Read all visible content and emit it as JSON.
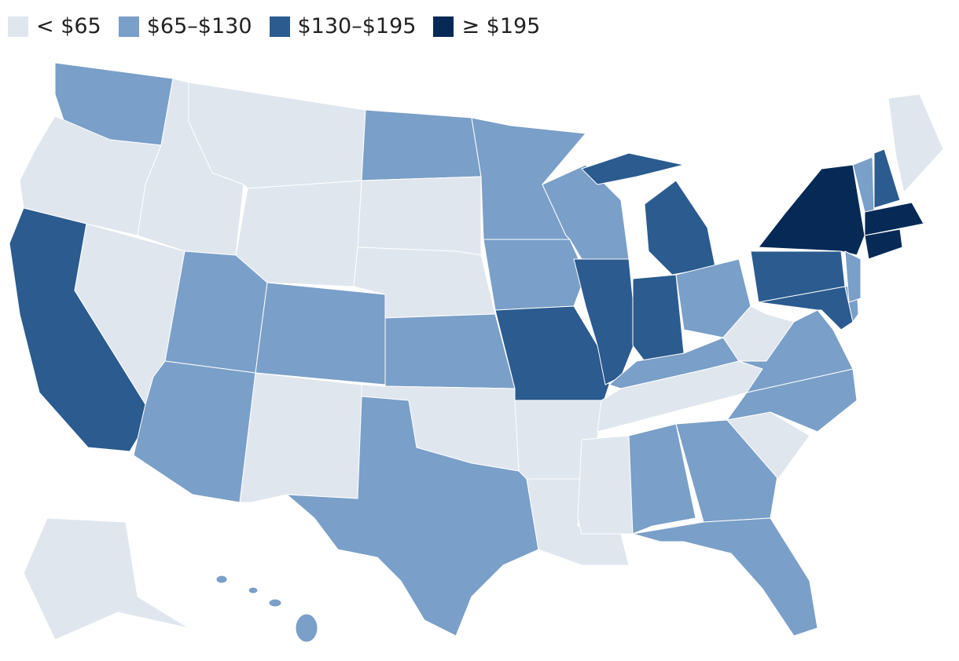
{
  "legend": [
    {
      "label": "< $65",
      "color": "#dfe6ee"
    },
    {
      "label": "$65–$130",
      "color": "#7a9fc8"
    },
    {
      "label": "$130–$195",
      "color": "#2b5b8f"
    },
    {
      "label": "≥ $195",
      "color": "#062a55"
    }
  ]
}
